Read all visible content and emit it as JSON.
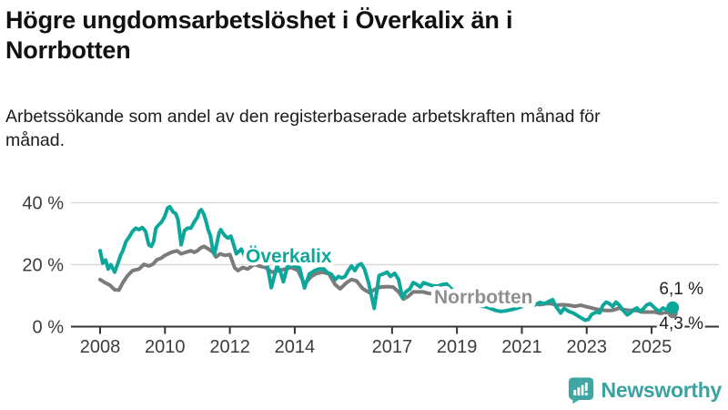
{
  "header": {
    "title": "Högre ungdomsarbetslöshet i Överkalix än i Norrbotten",
    "subtitle": "Arbetssökande som andel av den registerbaserade arbetskraften månad för månad."
  },
  "footer": {
    "brand": "Newsworthy",
    "brand_color": "#3aa2a2",
    "logo_icon": "bar-chart-speech-bubble-icon"
  },
  "chart_data": {
    "type": "line",
    "title": "Högre ungdomsarbetslöshet i Överkalix än i Norrbotten",
    "subtitle": "Arbetssökande som andel av den registerbaserade arbetskraften månad för månad.",
    "unit": "%",
    "grid": "horizontal",
    "legend_position": "inline-labels",
    "colors": {
      "axis": "#333333",
      "tick_label": "#3c3c3c",
      "gridline": "#d9d9d9",
      "value_label": "#222222"
    },
    "x_axis": {
      "range": [
        2007.1,
        2026.3
      ],
      "ticks": [
        2008,
        2010,
        2012,
        2014,
        2017,
        2019,
        2021,
        2023,
        2025
      ],
      "tick_labels": [
        "2008",
        "2010",
        "2012",
        "2014",
        "2017",
        "2019",
        "2021",
        "2023",
        "2025"
      ]
    },
    "y_axis": {
      "range": [
        0,
        43
      ],
      "ticks": [
        0,
        20,
        40
      ],
      "tick_labels": [
        "0 %",
        "20 %",
        "40 %"
      ]
    },
    "series": [
      {
        "name": "Norrbotten",
        "color": "#7b7b7b",
        "label_color": "#8f8f8f",
        "end_value": 4.3,
        "end_label": "4,3 %",
        "points": [
          [
            2008.0,
            15.2
          ],
          [
            2008.15,
            14.2
          ],
          [
            2008.3,
            13.4
          ],
          [
            2008.45,
            11.9
          ],
          [
            2008.58,
            11.8
          ],
          [
            2008.7,
            14.2
          ],
          [
            2008.85,
            16.5
          ],
          [
            2009.0,
            18.1
          ],
          [
            2009.2,
            18.6
          ],
          [
            2009.35,
            20.1
          ],
          [
            2009.5,
            19.6
          ],
          [
            2009.62,
            20.1
          ],
          [
            2009.75,
            21.6
          ],
          [
            2009.88,
            22.1
          ],
          [
            2010.0,
            23.0
          ],
          [
            2010.2,
            24.0
          ],
          [
            2010.37,
            24.5
          ],
          [
            2010.5,
            23.5
          ],
          [
            2010.64,
            24.0
          ],
          [
            2010.8,
            24.5
          ],
          [
            2010.9,
            24.0
          ],
          [
            2011.0,
            24.5
          ],
          [
            2011.1,
            25.4
          ],
          [
            2011.2,
            25.9
          ],
          [
            2011.35,
            25.0
          ],
          [
            2011.48,
            24.0
          ],
          [
            2011.57,
            22.5
          ],
          [
            2011.7,
            23.5
          ],
          [
            2011.85,
            23.0
          ],
          [
            2012.0,
            23.3
          ],
          [
            2012.15,
            19.0
          ],
          [
            2012.25,
            18.1
          ],
          [
            2012.4,
            19.1
          ],
          [
            2012.55,
            18.6
          ],
          [
            2012.75,
            20.1
          ],
          [
            2012.9,
            19.6
          ],
          [
            2013.1,
            19.1
          ],
          [
            2013.3,
            17.6
          ],
          [
            2013.5,
            18.1
          ],
          [
            2013.7,
            18.6
          ],
          [
            2013.9,
            19.1
          ],
          [
            2014.1,
            18.1
          ],
          [
            2014.3,
            13.7
          ],
          [
            2014.5,
            16.1
          ],
          [
            2014.65,
            17.1
          ],
          [
            2014.85,
            17.6
          ],
          [
            2015.05,
            17.1
          ],
          [
            2015.25,
            13.5
          ],
          [
            2015.4,
            12.2
          ],
          [
            2015.6,
            14.2
          ],
          [
            2015.75,
            15.2
          ],
          [
            2015.9,
            14.8
          ],
          [
            2016.1,
            12.2
          ],
          [
            2016.3,
            11.0
          ],
          [
            2016.5,
            12.2
          ],
          [
            2016.66,
            12.8
          ],
          [
            2016.85,
            12.9
          ],
          [
            2017.03,
            12.8
          ],
          [
            2017.2,
            11.2
          ],
          [
            2017.35,
            8.9
          ],
          [
            2017.5,
            9.8
          ],
          [
            2017.65,
            11.2
          ],
          [
            2017.8,
            11.2
          ],
          [
            2017.96,
            11.2
          ],
          [
            2018.1,
            10.8
          ],
          [
            2018.3,
            10.5
          ],
          [
            2018.5,
            10.2
          ],
          [
            2018.75,
            10.0
          ],
          [
            2019.0,
            9.6
          ],
          [
            2019.25,
            9.2
          ],
          [
            2019.5,
            8.8
          ],
          [
            2019.75,
            8.6
          ],
          [
            2020.0,
            8.4
          ],
          [
            2020.25,
            8.2
          ],
          [
            2020.5,
            8.3
          ],
          [
            2020.75,
            8.1
          ],
          [
            2021.0,
            7.9
          ],
          [
            2021.2,
            7.8
          ],
          [
            2021.4,
            7.4
          ],
          [
            2021.55,
            7.1
          ],
          [
            2021.75,
            7.4
          ],
          [
            2021.9,
            7.4
          ],
          [
            2022.08,
            6.9
          ],
          [
            2022.27,
            7.1
          ],
          [
            2022.45,
            6.9
          ],
          [
            2022.63,
            6.6
          ],
          [
            2022.82,
            6.9
          ],
          [
            2023.0,
            6.4
          ],
          [
            2023.2,
            5.9
          ],
          [
            2023.4,
            5.4
          ],
          [
            2023.6,
            5.2
          ],
          [
            2023.75,
            5.2
          ],
          [
            2023.9,
            5.6
          ],
          [
            2024.0,
            6.0
          ],
          [
            2024.15,
            5.5
          ],
          [
            2024.35,
            5.2
          ],
          [
            2024.55,
            5.2
          ],
          [
            2024.7,
            4.7
          ],
          [
            2024.9,
            4.7
          ],
          [
            2025.1,
            4.7
          ],
          [
            2025.25,
            4.3
          ],
          [
            2025.45,
            4.4
          ],
          [
            2025.65,
            4.3
          ]
        ]
      },
      {
        "name": "Överkalix",
        "color": "#0ca79a",
        "label_color": "#0ca79a",
        "end_value": 6.1,
        "end_label": "6,1 %",
        "points": [
          [
            2008.0,
            24.5
          ],
          [
            2008.08,
            20.5
          ],
          [
            2008.17,
            21.5
          ],
          [
            2008.25,
            18.6
          ],
          [
            2008.33,
            20.0
          ],
          [
            2008.45,
            17.6
          ],
          [
            2008.55,
            20.5
          ],
          [
            2008.63,
            23.0
          ],
          [
            2008.7,
            24.5
          ],
          [
            2008.8,
            27.5
          ],
          [
            2008.9,
            29.0
          ],
          [
            2009.0,
            30.8
          ],
          [
            2009.1,
            31.8
          ],
          [
            2009.2,
            31.3
          ],
          [
            2009.3,
            32.0
          ],
          [
            2009.4,
            30.8
          ],
          [
            2009.5,
            26.4
          ],
          [
            2009.58,
            25.9
          ],
          [
            2009.65,
            27.4
          ],
          [
            2009.72,
            31.8
          ],
          [
            2009.8,
            32.8
          ],
          [
            2009.9,
            33.8
          ],
          [
            2010.0,
            35.8
          ],
          [
            2010.08,
            38.3
          ],
          [
            2010.15,
            38.7
          ],
          [
            2010.25,
            37.0
          ],
          [
            2010.33,
            36.5
          ],
          [
            2010.4,
            34.5
          ],
          [
            2010.5,
            26.4
          ],
          [
            2010.6,
            31.0
          ],
          [
            2010.7,
            31.8
          ],
          [
            2010.8,
            31.8
          ],
          [
            2010.9,
            33.8
          ],
          [
            2011.0,
            35.3
          ],
          [
            2011.06,
            37.2
          ],
          [
            2011.12,
            37.7
          ],
          [
            2011.2,
            36.2
          ],
          [
            2011.27,
            33.8
          ],
          [
            2011.33,
            31.3
          ],
          [
            2011.4,
            29.4
          ],
          [
            2011.48,
            24.4
          ],
          [
            2011.53,
            23.4
          ],
          [
            2011.6,
            26.9
          ],
          [
            2011.67,
            30.3
          ],
          [
            2011.72,
            31.3
          ],
          [
            2011.78,
            30.3
          ],
          [
            2011.85,
            29.3
          ],
          [
            2011.94,
            28.6
          ],
          [
            2012.03,
            29.2
          ],
          [
            2012.1,
            27.0
          ],
          [
            2012.2,
            23.5
          ],
          [
            2012.35,
            25.0
          ],
          [
            2012.5,
            22.0
          ],
          [
            2012.6,
            24.0
          ],
          [
            2012.7,
            24.5
          ],
          [
            2012.8,
            24.0
          ],
          [
            2012.9,
            22.5
          ],
          [
            2013.0,
            22.0
          ],
          [
            2013.13,
            21.0
          ],
          [
            2013.28,
            12.6
          ],
          [
            2013.45,
            19.5
          ],
          [
            2013.55,
            18.0
          ],
          [
            2013.65,
            14.5
          ],
          [
            2013.78,
            19.8
          ],
          [
            2013.9,
            19.5
          ],
          [
            2014.0,
            19.7
          ],
          [
            2014.15,
            19.0
          ],
          [
            2014.3,
            12.5
          ],
          [
            2014.45,
            17.0
          ],
          [
            2014.6,
            18.0
          ],
          [
            2014.75,
            18.6
          ],
          [
            2014.9,
            18.6
          ],
          [
            2015.0,
            17.5
          ],
          [
            2015.12,
            17.0
          ],
          [
            2015.25,
            15.2
          ],
          [
            2015.35,
            16.2
          ],
          [
            2015.45,
            15.7
          ],
          [
            2015.55,
            16.2
          ],
          [
            2015.65,
            18.1
          ],
          [
            2015.75,
            19.6
          ],
          [
            2015.85,
            18.1
          ],
          [
            2015.95,
            19.8
          ],
          [
            2016.05,
            20.3
          ],
          [
            2016.15,
            18.6
          ],
          [
            2016.28,
            14.0
          ],
          [
            2016.45,
            5.9
          ],
          [
            2016.6,
            16.5
          ],
          [
            2016.72,
            17.0
          ],
          [
            2016.85,
            17.6
          ],
          [
            2016.95,
            16.2
          ],
          [
            2017.08,
            17.2
          ],
          [
            2017.2,
            15.2
          ],
          [
            2017.32,
            9.3
          ],
          [
            2017.42,
            11.2
          ],
          [
            2017.55,
            12.2
          ],
          [
            2017.65,
            14.2
          ],
          [
            2017.75,
            13.7
          ],
          [
            2017.87,
            12.8
          ],
          [
            2017.97,
            14.2
          ],
          [
            2018.1,
            13.7
          ],
          [
            2018.25,
            13.2
          ],
          [
            2018.4,
            13.1
          ],
          [
            2018.55,
            13.6
          ],
          [
            2018.68,
            13.8
          ],
          [
            2018.8,
            12.5
          ],
          [
            2019.0,
            10.5
          ],
          [
            2019.2,
            8.8
          ],
          [
            2019.4,
            7.6
          ],
          [
            2019.6,
            6.9
          ],
          [
            2019.75,
            6.6
          ],
          [
            2019.9,
            6.4
          ],
          [
            2020.05,
            5.8
          ],
          [
            2020.2,
            5.2
          ],
          [
            2020.35,
            4.9
          ],
          [
            2020.5,
            5.1
          ],
          [
            2020.65,
            5.4
          ],
          [
            2020.8,
            5.8
          ],
          [
            2020.95,
            6.3
          ],
          [
            2021.1,
            6.8
          ],
          [
            2021.25,
            7.5
          ],
          [
            2021.4,
            7.0
          ],
          [
            2021.55,
            7.8
          ],
          [
            2021.7,
            7.4
          ],
          [
            2021.85,
            8.2
          ],
          [
            2021.95,
            8.7
          ],
          [
            2022.05,
            6.5
          ],
          [
            2022.2,
            4.4
          ],
          [
            2022.3,
            5.9
          ],
          [
            2022.45,
            4.9
          ],
          [
            2022.6,
            4.3
          ],
          [
            2022.8,
            3.0
          ],
          [
            2022.95,
            2.1
          ],
          [
            2023.05,
            2.3
          ],
          [
            2023.15,
            3.9
          ],
          [
            2023.3,
            4.7
          ],
          [
            2023.4,
            4.4
          ],
          [
            2023.5,
            6.9
          ],
          [
            2023.6,
            7.9
          ],
          [
            2023.7,
            7.4
          ],
          [
            2023.8,
            6.5
          ],
          [
            2023.9,
            7.9
          ],
          [
            2024.0,
            7.0
          ],
          [
            2024.1,
            5.5
          ],
          [
            2024.25,
            3.8
          ],
          [
            2024.35,
            4.5
          ],
          [
            2024.45,
            5.5
          ],
          [
            2024.55,
            6.0
          ],
          [
            2024.63,
            5.0
          ],
          [
            2024.72,
            5.5
          ],
          [
            2024.85,
            7.0
          ],
          [
            2024.95,
            7.4
          ],
          [
            2025.05,
            6.5
          ],
          [
            2025.15,
            5.5
          ],
          [
            2025.25,
            5.0
          ],
          [
            2025.35,
            6.0
          ],
          [
            2025.45,
            5.5
          ],
          [
            2025.55,
            6.0
          ],
          [
            2025.65,
            6.1
          ]
        ]
      }
    ]
  }
}
